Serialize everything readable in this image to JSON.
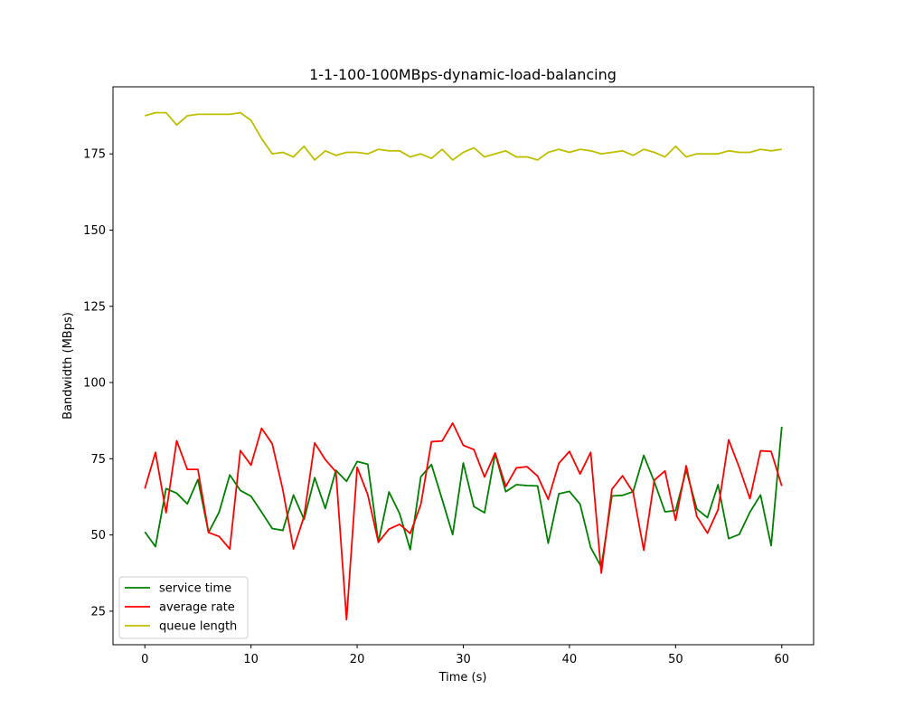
{
  "chart_data": {
    "type": "line",
    "title": "1-1-100-100MBps-dynamic-load-balancing",
    "xlabel": "Time (s)",
    "ylabel": "Bandwidth (MBps)",
    "xlim": [
      -3,
      63
    ],
    "ylim": [
      14,
      197
    ],
    "xticks": [
      0,
      10,
      20,
      30,
      40,
      50,
      60
    ],
    "yticks": [
      25,
      50,
      75,
      100,
      125,
      150,
      175
    ],
    "grid": false,
    "legend_position": "lower-left",
    "x": [
      0,
      1,
      2,
      3,
      4,
      5,
      6,
      7,
      8,
      9,
      10,
      11,
      12,
      13,
      14,
      15,
      16,
      17,
      18,
      19,
      20,
      21,
      22,
      23,
      24,
      25,
      26,
      27,
      28,
      29,
      30,
      31,
      32,
      33,
      34,
      35,
      36,
      37,
      38,
      39,
      40,
      41,
      42,
      43,
      44,
      45,
      46,
      47,
      48,
      49,
      50,
      51,
      52,
      53,
      54,
      55,
      56,
      57,
      58,
      59,
      60
    ],
    "series": [
      {
        "name": "service time",
        "color": "#008000",
        "values": [
          51,
          46.2,
          65.2,
          63.7,
          60.2,
          68.2,
          50.8,
          57.5,
          69.7,
          64.6,
          62.7,
          57.5,
          52.1,
          51.5,
          63.1,
          55.1,
          68.8,
          58.7,
          71.2,
          67.6,
          74.1,
          73.2,
          47.6,
          64.1,
          57,
          45.2,
          69.1,
          73.1,
          61.7,
          50.1,
          73.6,
          59.3,
          57.3,
          76.7,
          64.2,
          66.5,
          66.2,
          66.1,
          47.3,
          63.5,
          64.3,
          60.1,
          45.9,
          39.5,
          62.8,
          63,
          64.2,
          76.1,
          67.4,
          57.6,
          58,
          71.3,
          58.5,
          55.7,
          66.5,
          48.8,
          50.2,
          57.5,
          63.1,
          46.5,
          85.5
        ]
      },
      {
        "name": "average rate",
        "color": "#ff0000",
        "values": [
          65.2,
          77.1,
          57.3,
          80.9,
          71.5,
          71.5,
          50.8,
          49.5,
          45.4,
          77.7,
          72.9,
          85,
          79.9,
          64.8,
          45.4,
          56.1,
          80.2,
          74.7,
          70.7,
          22.2,
          72.2,
          63.2,
          47.6,
          51.9,
          53.5,
          50.5,
          60,
          80.6,
          80.8,
          86.7,
          79.4,
          78,
          69,
          76.9,
          65.9,
          72,
          72.4,
          69.3,
          61.7,
          73.5,
          77.4,
          70,
          77.1,
          37.5,
          65,
          69.4,
          64,
          45,
          68,
          71,
          54.8,
          72.7,
          56.1,
          50.6,
          58.3,
          81.2,
          72.1,
          61.9,
          77.6,
          77.4,
          66.1
        ]
      },
      {
        "name": "queue length",
        "color": "#bfbf00",
        "values": [
          187.5,
          188.5,
          188.5,
          184.5,
          187.5,
          188,
          188,
          188,
          188,
          188.5,
          186,
          180,
          175,
          175.5,
          174,
          177.5,
          173,
          176,
          174.5,
          175.5,
          175.5,
          175,
          176.5,
          176,
          176,
          174,
          175,
          173.5,
          176.5,
          173,
          175.5,
          177,
          174,
          175,
          176,
          174,
          174,
          173,
          175.5,
          176.5,
          175.5,
          176.5,
          176,
          175,
          175.5,
          176,
          174.5,
          176.5,
          175.5,
          174,
          177.5,
          174,
          175,
          175,
          175,
          176,
          175.5,
          175.5,
          176.5,
          176,
          176.5
        ]
      }
    ]
  }
}
